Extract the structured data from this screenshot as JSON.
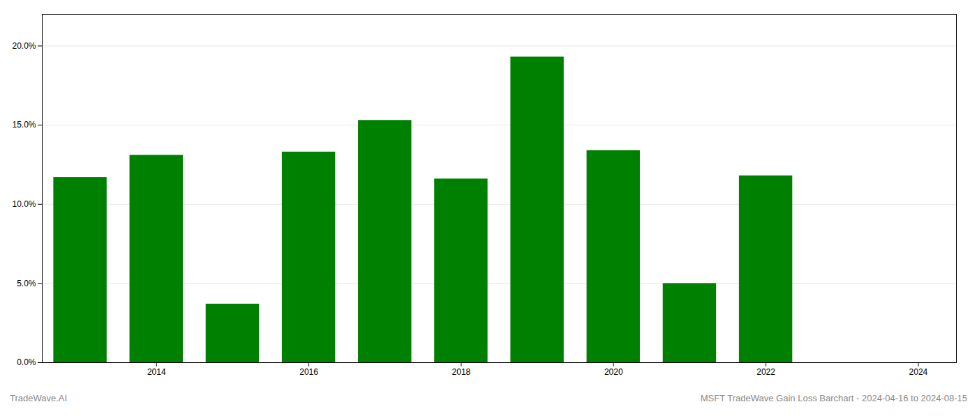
{
  "chart_data": {
    "type": "bar",
    "x": [
      2013,
      2014,
      2015,
      2016,
      2017,
      2018,
      2019,
      2020,
      2021,
      2022,
      2023
    ],
    "values": [
      0.117,
      0.131,
      0.037,
      0.133,
      0.153,
      0.116,
      0.193,
      0.134,
      0.05,
      0.118,
      0.0
    ],
    "color": "#008000",
    "xlim": [
      2012.5,
      2024.5
    ],
    "xticks": [
      2014,
      2016,
      2018,
      2020,
      2022,
      2024
    ],
    "ylim": [
      0.0,
      0.22
    ],
    "yticks": [
      {
        "value": 0.0,
        "label": "0.0%"
      },
      {
        "value": 0.05,
        "label": "5.0%"
      },
      {
        "value": 0.1,
        "label": "10.0%"
      },
      {
        "value": 0.15,
        "label": "15.0%"
      },
      {
        "value": 0.2,
        "label": "20.0%"
      }
    ],
    "grid": true,
    "annotations": [
      "TradeWave.AI",
      "MSFT TradeWave Gain Loss Barchart - 2024-04-16 to 2024-08-15"
    ]
  }
}
